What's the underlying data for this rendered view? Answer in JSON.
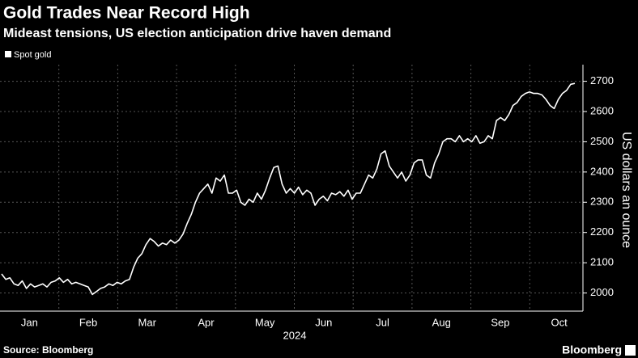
{
  "chart_data": {
    "type": "line",
    "title": "Gold Trades Near Record High",
    "subtitle": "Mideast tensions, US election anticipation drive haven demand",
    "ylabel": "US dollars an ounce",
    "xlabel": "2024",
    "months": [
      "Jan",
      "Feb",
      "Mar",
      "Apr",
      "May",
      "Jun",
      "Jul",
      "Aug",
      "Sep",
      "Oct"
    ],
    "ylim": [
      1940,
      2755
    ],
    "yticks": [
      2000,
      2100,
      2200,
      2300,
      2400,
      2500,
      2600,
      2700
    ],
    "grid": true,
    "series": [
      {
        "name": "Spot gold",
        "color": "#ffffff",
        "values": [
          2063,
          2045,
          2050,
          2030,
          2025,
          2040,
          2015,
          2030,
          2020,
          2025,
          2030,
          2020,
          2035,
          2040,
          2050,
          2035,
          2045,
          2030,
          2035,
          2030,
          2025,
          2020,
          1995,
          2005,
          2015,
          2020,
          2030,
          2025,
          2035,
          2030,
          2040,
          2045,
          2085,
          2115,
          2130,
          2160,
          2180,
          2170,
          2155,
          2165,
          2160,
          2175,
          2165,
          2175,
          2195,
          2230,
          2260,
          2300,
          2330,
          2345,
          2360,
          2330,
          2380,
          2370,
          2390,
          2330,
          2330,
          2340,
          2300,
          2290,
          2310,
          2300,
          2330,
          2310,
          2340,
          2380,
          2415,
          2420,
          2360,
          2330,
          2345,
          2330,
          2350,
          2325,
          2340,
          2330,
          2290,
          2310,
          2320,
          2305,
          2330,
          2325,
          2335,
          2320,
          2340,
          2310,
          2330,
          2330,
          2360,
          2390,
          2380,
          2410,
          2460,
          2470,
          2420,
          2400,
          2380,
          2400,
          2370,
          2390,
          2430,
          2440,
          2440,
          2390,
          2380,
          2430,
          2460,
          2500,
          2510,
          2510,
          2500,
          2520,
          2500,
          2510,
          2500,
          2520,
          2495,
          2500,
          2520,
          2510,
          2570,
          2580,
          2570,
          2590,
          2620,
          2630,
          2650,
          2660,
          2665,
          2660,
          2660,
          2655,
          2640,
          2620,
          2610,
          2640,
          2660,
          2670,
          2690,
          2693
        ]
      }
    ]
  },
  "source": "Source: Bloomberg",
  "brand": "Bloomberg"
}
